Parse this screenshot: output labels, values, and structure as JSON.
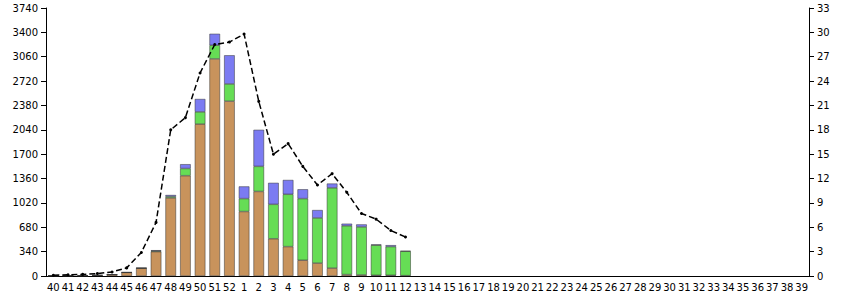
{
  "chart_data": {
    "type": "bar",
    "stacked": true,
    "grid": false,
    "categories": [
      "40",
      "41",
      "42",
      "43",
      "44",
      "45",
      "46",
      "47",
      "48",
      "49",
      "50",
      "51",
      "52",
      "1",
      "2",
      "3",
      "4",
      "5",
      "6",
      "7",
      "8",
      "9",
      "10",
      "11",
      "12",
      "13",
      "14",
      "15",
      "16",
      "17",
      "18",
      "19",
      "20",
      "21",
      "22",
      "23",
      "24",
      "25",
      "26",
      "27",
      "28",
      "29",
      "30",
      "31",
      "32",
      "33",
      "34",
      "35",
      "36",
      "37",
      "38",
      "39"
    ],
    "ylim": [
      0,
      3740
    ],
    "yticks": [
      0,
      340,
      680,
      1020,
      1360,
      1700,
      2040,
      2380,
      2720,
      3060,
      3400,
      3740
    ],
    "y2lim": [
      0,
      33
    ],
    "y2ticks": [
      0,
      3,
      6,
      9,
      12,
      15,
      18,
      21,
      24,
      27,
      30,
      33
    ],
    "series": [
      {
        "type": "bar",
        "color": "#c8935c",
        "values": [
          5,
          5,
          5,
          10,
          20,
          50,
          110,
          340,
          1090,
          1400,
          2120,
          3030,
          2440,
          900,
          1180,
          520,
          410,
          220,
          180,
          110,
          20,
          15,
          10,
          10,
          5,
          null,
          null,
          null,
          null,
          null,
          null,
          null,
          null,
          null,
          null,
          null,
          null,
          null,
          null,
          null,
          null,
          null,
          null,
          null,
          null,
          null,
          null,
          null,
          null,
          null,
          null,
          null
        ]
      },
      {
        "type": "bar",
        "color": "#66dd55",
        "values": [
          0,
          0,
          0,
          0,
          0,
          0,
          0,
          10,
          20,
          100,
          170,
          190,
          240,
          180,
          350,
          480,
          730,
          860,
          630,
          1120,
          680,
          670,
          420,
          400,
          340,
          null,
          null,
          null,
          null,
          null,
          null,
          null,
          null,
          null,
          null,
          null,
          null,
          null,
          null,
          null,
          null,
          null,
          null,
          null,
          null,
          null,
          null,
          null,
          null,
          null,
          null,
          null
        ]
      },
      {
        "type": "bar",
        "color": "#7b7bf2",
        "values": [
          0,
          0,
          0,
          0,
          0,
          0,
          0,
          10,
          20,
          60,
          180,
          160,
          400,
          170,
          510,
          300,
          200,
          130,
          110,
          60,
          30,
          35,
          10,
          20,
          5,
          null,
          null,
          null,
          null,
          null,
          null,
          null,
          null,
          null,
          null,
          null,
          null,
          null,
          null,
          null,
          null,
          null,
          null,
          null,
          null,
          null,
          null,
          null,
          null,
          null,
          null,
          null
        ]
      },
      {
        "type": "line",
        "axis": "y2",
        "color": "#000000",
        "marker": "circle",
        "line_style": "dashed",
        "values": [
          0.1,
          0.15,
          0.2,
          0.3,
          0.5,
          1.0,
          2.9,
          6.6,
          18.0,
          19.5,
          25.0,
          28.5,
          28.8,
          29.8,
          21.5,
          15.0,
          16.3,
          13.5,
          11.2,
          12.6,
          10.3,
          7.7,
          7.0,
          5.6,
          4.8,
          null,
          null,
          null,
          null,
          null,
          null,
          null,
          null,
          null,
          null,
          null,
          null,
          null,
          null,
          null,
          null,
          null,
          null,
          null,
          null,
          null,
          null,
          null,
          null,
          null,
          null,
          null
        ]
      }
    ]
  }
}
